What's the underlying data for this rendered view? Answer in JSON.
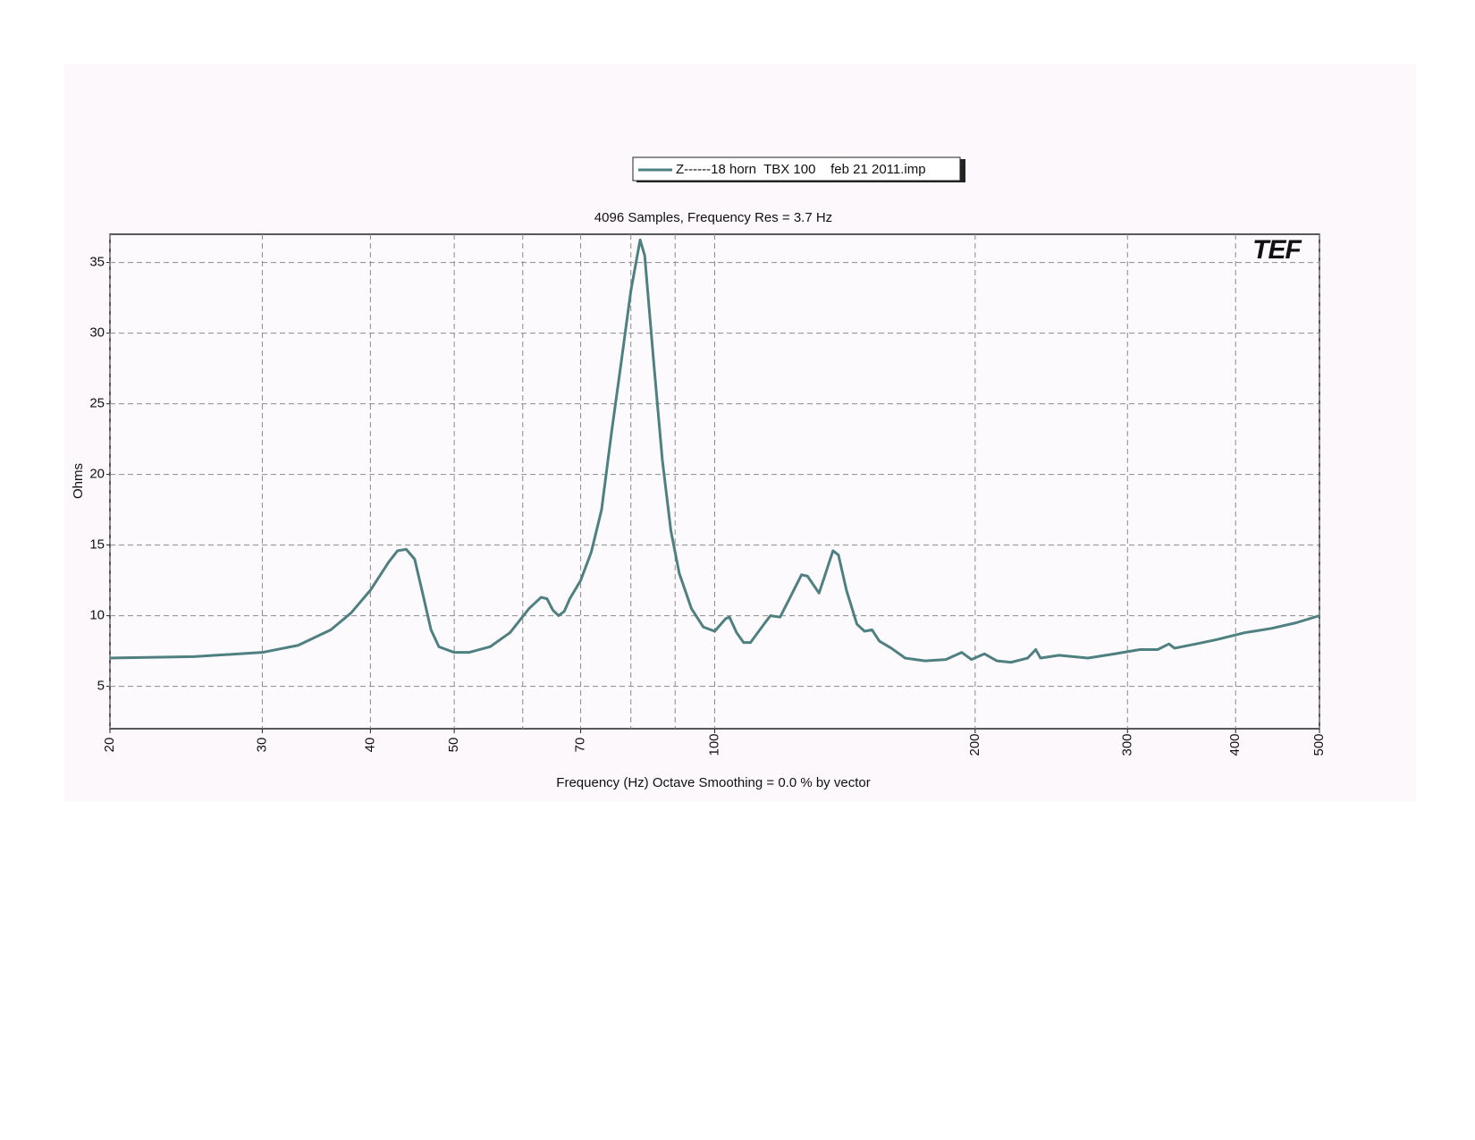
{
  "chart_data": {
    "type": "line",
    "title": "4096 Samples, Frequency Res = 3.7 Hz",
    "xlabel": "Frequency (Hz) Octave Smoothing = 0.0 % by vector",
    "ylabel": "Ohms",
    "logo": "TEF",
    "xscale": "log",
    "xlim": [
      20,
      500
    ],
    "ylim": [
      2,
      37
    ],
    "xticks": [
      20,
      30,
      40,
      50,
      70,
      100,
      200,
      300,
      400,
      500
    ],
    "xminor": [
      60,
      80,
      90
    ],
    "yticks": [
      5,
      10,
      15,
      20,
      25,
      30,
      35
    ],
    "grid": true,
    "series": [
      {
        "name": "Z------18 horn  TBX 100    feb 21 2011.imp",
        "color": "#4f8081",
        "x": [
          20,
          25,
          30,
          33,
          36,
          38,
          40,
          42,
          43,
          44,
          45,
          46,
          47,
          48,
          50,
          52,
          55,
          58,
          61,
          63,
          64,
          65,
          66,
          67,
          68,
          70,
          72,
          74,
          76,
          78,
          80,
          82,
          83,
          85,
          87,
          89,
          91,
          94,
          97,
          100,
          103,
          104,
          106,
          108,
          110,
          114,
          116,
          119,
          122,
          126,
          128,
          132,
          134,
          137,
          139,
          142,
          146,
          149,
          152,
          155,
          160,
          166,
          175,
          185,
          193,
          198,
          205,
          212,
          220,
          230,
          235,
          238,
          250,
          270,
          290,
          310,
          325,
          335,
          340,
          360,
          380,
          410,
          420,
          440,
          470,
          500
        ],
        "values": [
          7.0,
          7.1,
          7.4,
          7.9,
          9.0,
          10.2,
          11.8,
          13.8,
          14.6,
          14.7,
          14.0,
          11.5,
          9.0,
          7.8,
          7.4,
          7.4,
          7.8,
          8.8,
          10.5,
          11.3,
          11.2,
          10.4,
          10.0,
          10.3,
          11.2,
          12.5,
          14.5,
          17.5,
          23,
          28,
          33,
          36.6,
          35.5,
          28,
          21,
          16,
          13,
          10.5,
          9.2,
          8.9,
          9.8,
          9.9,
          8.8,
          8.1,
          8.1,
          9.4,
          10.0,
          9.9,
          11.2,
          12.9,
          12.8,
          11.6,
          12.8,
          14.6,
          14.3,
          11.8,
          9.4,
          8.9,
          9.0,
          8.2,
          7.7,
          7.0,
          6.8,
          6.9,
          7.4,
          6.9,
          7.3,
          6.8,
          6.7,
          7.0,
          7.6,
          7.0,
          7.2,
          7.0,
          7.3,
          7.6,
          7.6,
          8.0,
          7.7,
          8.0,
          8.3,
          8.8,
          8.9,
          9.1,
          9.5,
          10.0
        ]
      }
    ]
  }
}
